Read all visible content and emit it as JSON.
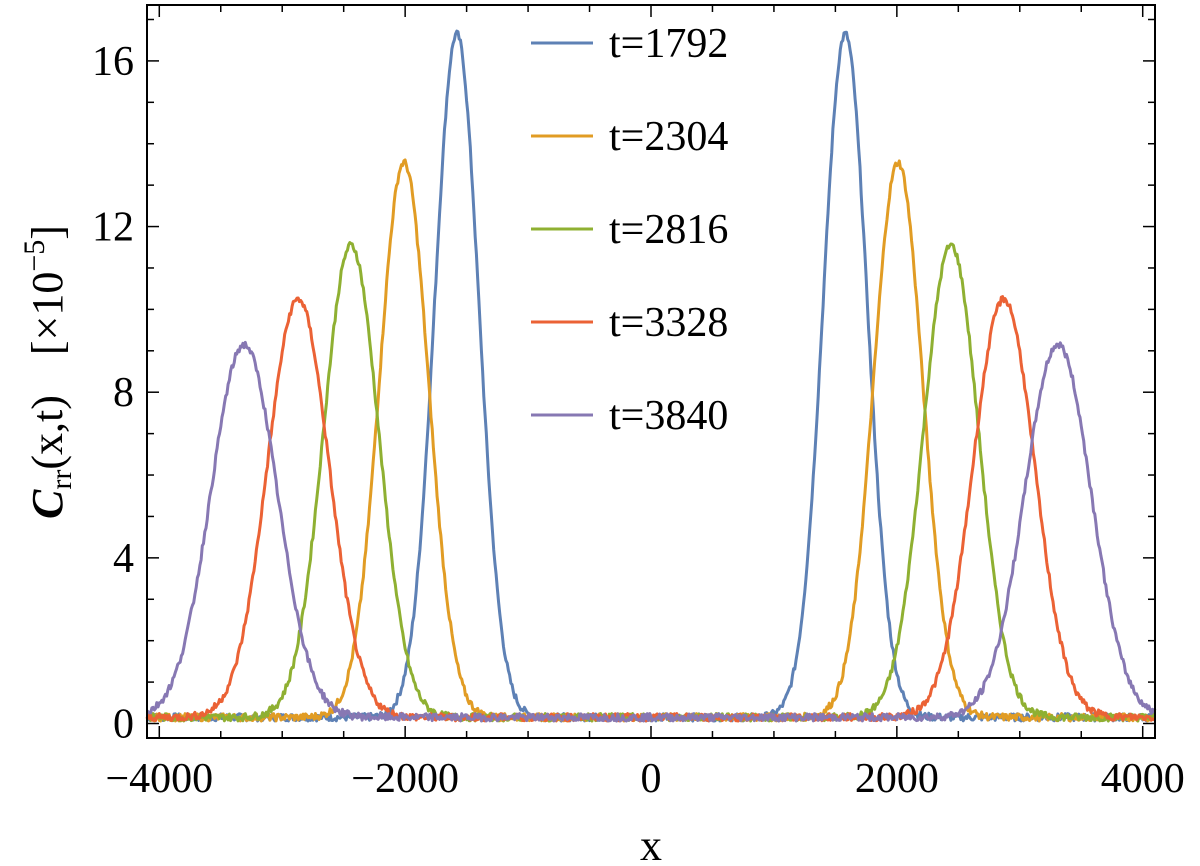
{
  "chart_data": {
    "type": "line",
    "xlabel": "x",
    "ylabel": {
      "symbol": "C",
      "subscript": "rr",
      "args": "(x,t)",
      "scale": "[×10",
      "scale_exp": "−5",
      "scale_close": "]"
    },
    "xlim": [
      -4100,
      4100
    ],
    "ylim": [
      -0.35,
      17.35
    ],
    "x_ticks": [
      {
        "value": -4000,
        "label": "−4000"
      },
      {
        "value": -2000,
        "label": "−2000"
      },
      {
        "value": 0,
        "label": "0"
      },
      {
        "value": 2000,
        "label": "2000"
      },
      {
        "value": 4000,
        "label": "4000"
      }
    ],
    "y_ticks": [
      {
        "value": 0,
        "label": "0"
      },
      {
        "value": 4,
        "label": "4"
      },
      {
        "value": 8,
        "label": "8"
      },
      {
        "value": 12,
        "label": "12"
      },
      {
        "value": 16,
        "label": "16"
      }
    ],
    "grid": false,
    "legend_position": "top-center",
    "baseline": 0.15,
    "series": [
      {
        "name": "t=1792",
        "color": "#5e81b5",
        "centers": [
          -1580,
          1580
        ],
        "peak": 16.5,
        "sigma": 180
      },
      {
        "name": "t=2304",
        "color": "#e19c24",
        "centers": [
          -2010,
          2010
        ],
        "peak": 13.4,
        "sigma": 200
      },
      {
        "name": "t=2816",
        "color": "#8fb032",
        "centers": [
          -2440,
          2440
        ],
        "peak": 11.4,
        "sigma": 225
      },
      {
        "name": "t=3328",
        "color": "#eb6235",
        "centers": [
          -2870,
          2870
        ],
        "peak": 10.1,
        "sigma": 250
      },
      {
        "name": "t=3840",
        "color": "#8778b3",
        "centers": [
          -3310,
          3310
        ],
        "peak": 9.0,
        "sigma": 270
      }
    ]
  }
}
